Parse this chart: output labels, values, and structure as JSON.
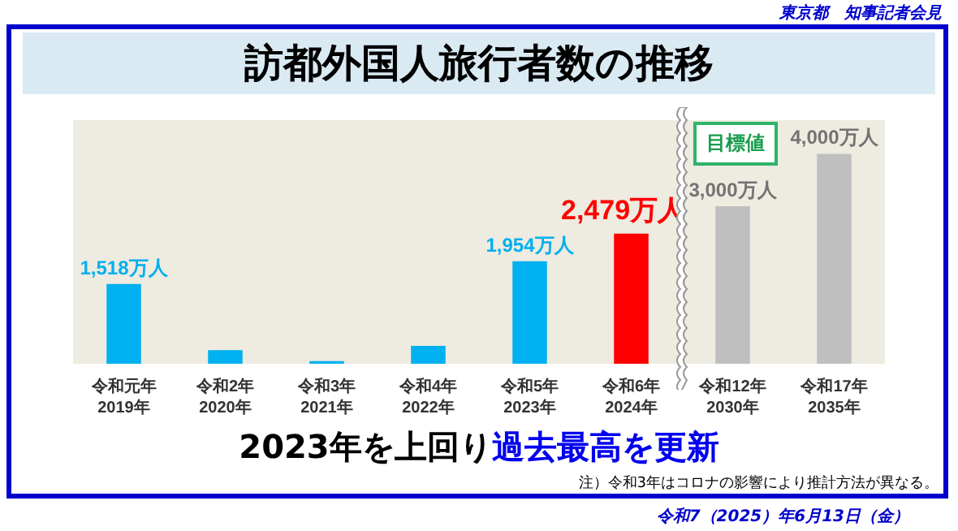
{
  "chart_data": {
    "type": "bar",
    "title": "訪都外国人旅行者数の推移",
    "subtitle": "2023年を上回り過去最高を更新",
    "categories": [
      "令和元年\n2019年",
      "令和2年\n2020年",
      "令和3年\n2021年",
      "令和4年\n2022年",
      "令和5年\n2023年",
      "令和6年\n2024年",
      "令和12年\n2030年",
      "令和17年\n2035年"
    ],
    "values": [
      1518,
      260,
      50,
      340,
      1954,
      2479,
      3000,
      4000
    ],
    "colors": [
      "#00b0f0",
      "#00b0f0",
      "#00b0f0",
      "#00b0f0",
      "#00b0f0",
      "#ff0000",
      "#bfbfbf",
      "#bfbfbf"
    ],
    "value_labels": [
      "1,518万人",
      null,
      null,
      null,
      "1,954万人",
      "2,479万人",
      "3,000万人",
      "4,000万人"
    ],
    "annotations": [
      "東京都　知事記者会見",
      "目標値",
      "注）令和3年はコロナの影響により推計方法が異なる。",
      "令和7（2025）年6月13日（金）"
    ]
  }
}
